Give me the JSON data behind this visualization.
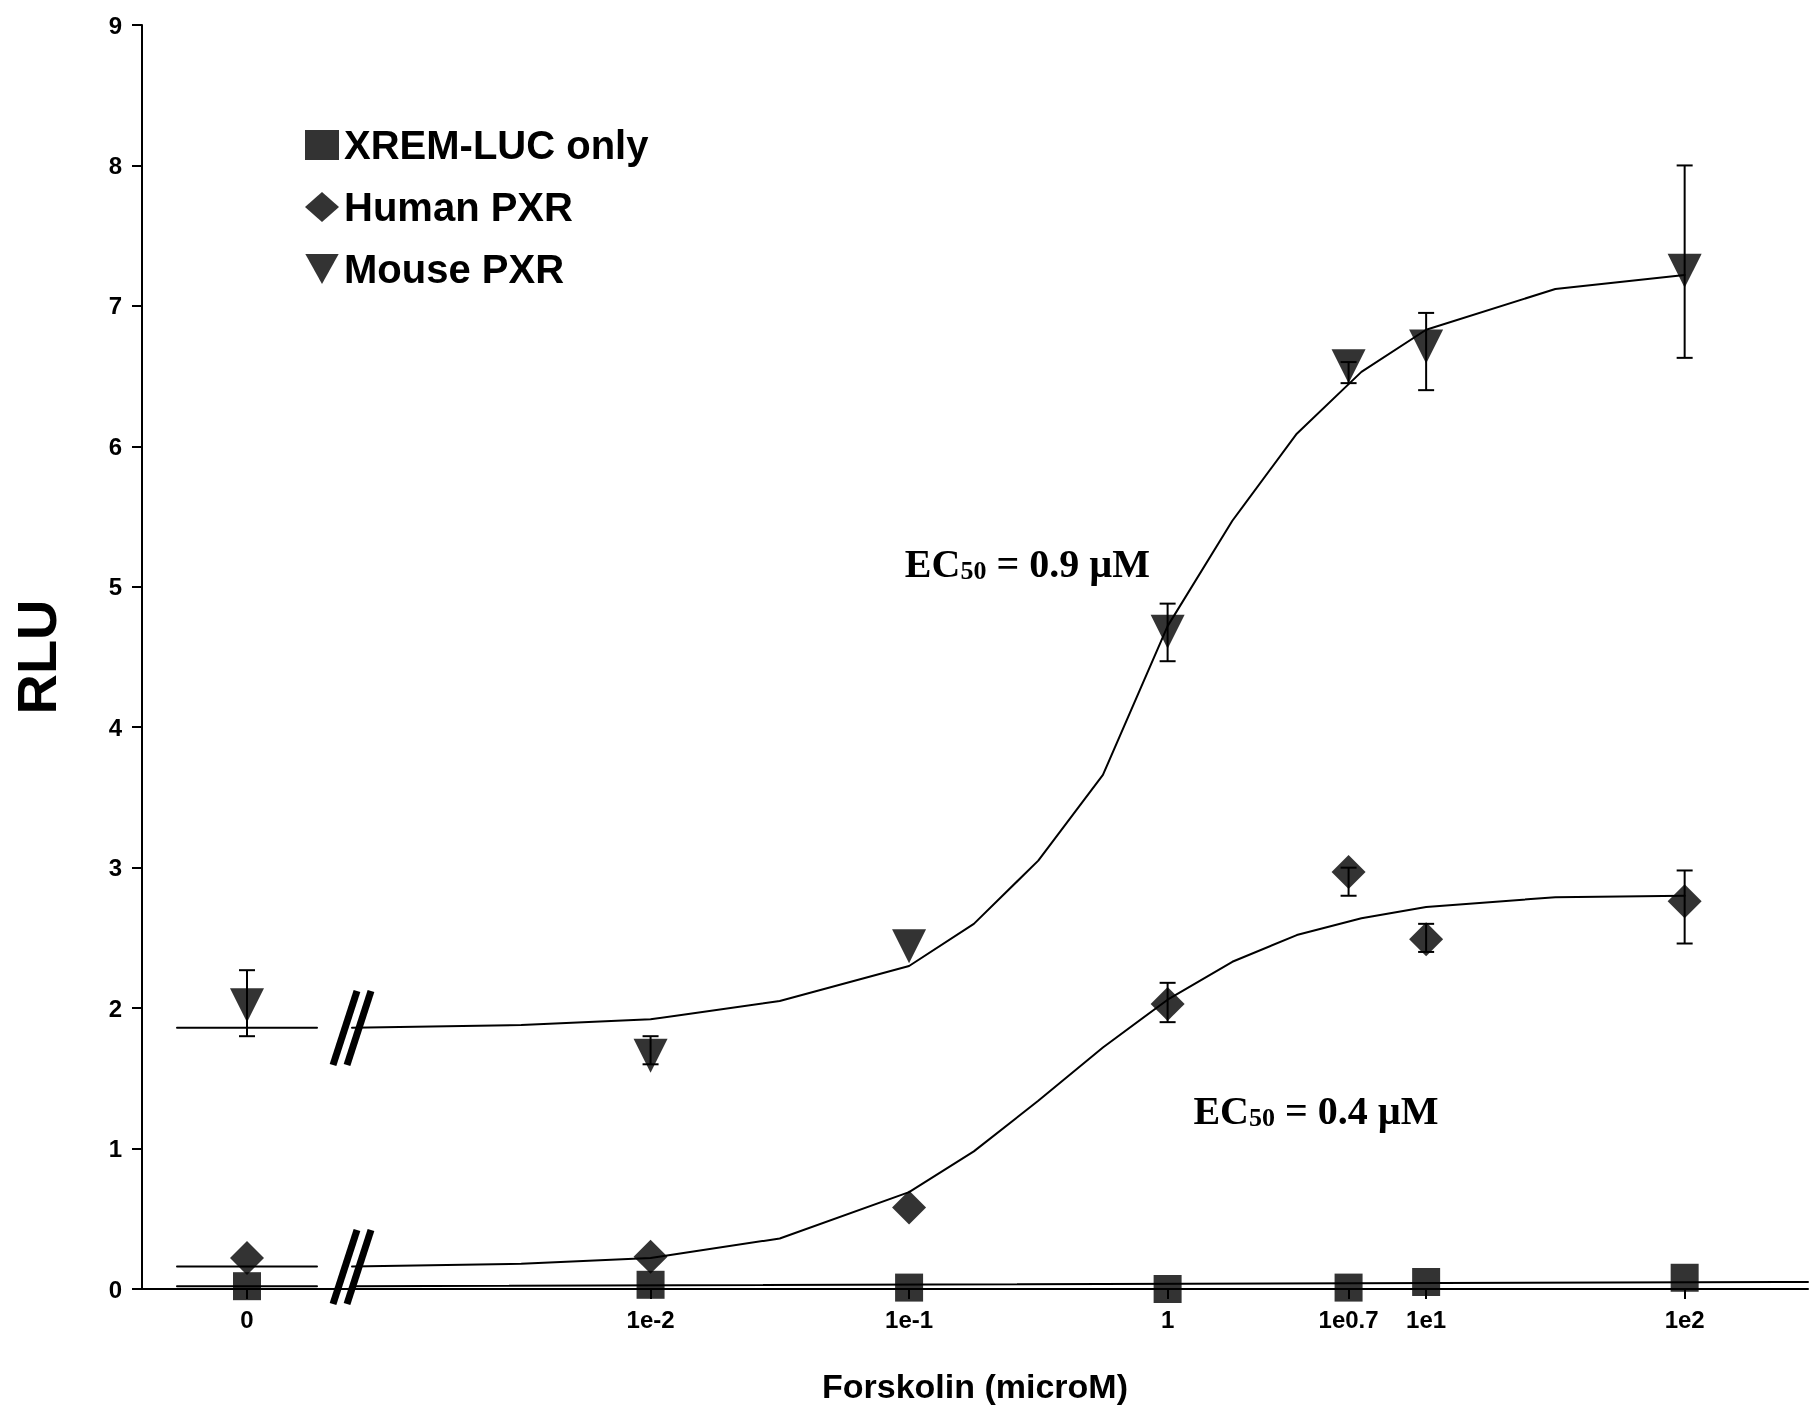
{
  "chart_data": [
    {
      "type": "scatter",
      "ylabel": "RLU",
      "categories": [
        null,
        "0",
        null
      ],
      "ylim": [
        0,
        9
      ],
      "yticks": [
        0,
        1,
        2,
        3,
        4,
        5,
        6,
        7,
        8,
        9
      ],
      "grid": false,
      "series": [
        {
          "color": "#000000",
          "marker": "square",
          "values": [
            null,
            0.02,
            null
          ]
        },
        {
          "color": "#000000",
          "marker": "diamond",
          "values": [
            null,
            0.22,
            null
          ]
        },
        {
          "color": "#000000",
          "marker": "triangle",
          "values": [
            null,
            2.02,
            null
          ],
          "errors": [
            null,
            [
              1.8,
              2.27
            ],
            null
          ]
        },
        {
          "type": "line",
          "color": "#000000",
          "marker": "none",
          "values": [
            0.02,
            0.02,
            0.02
          ]
        },
        {
          "type": "line",
          "color": "#000000",
          "marker": "none",
          "values": [
            0.16,
            0.16,
            0.16
          ]
        },
        {
          "type": "line",
          "color": "#000000",
          "marker": "none",
          "values": [
            1.86,
            1.86,
            1.86
          ]
        }
      ]
    },
    {
      "type": "scatter",
      "xlabel": "Forskolin (microM)",
      "log": "x",
      "xlim": [
        0.0007,
        300
      ],
      "ylim": [
        0,
        9
      ],
      "tick_labels": "x",
      "xticks": [
        {
          "value": 0.01,
          "label": "1e-2"
        },
        {
          "value": 0.1,
          "label": "1e-1"
        },
        1,
        {
          "value": 5.012,
          "label": "1e0.7"
        },
        {
          "value": 10,
          "label": "1e1"
        },
        {
          "value": 100,
          "label": "1e2"
        }
      ],
      "grid": false,
      "legend": "top left",
      "annotations": [
        "EC$_{50}$ = 0.9 µM",
        "EC$_{50}$ = 0.4 µM"
      ],
      "series": [
        {
          "name": "XREM-LUC only",
          "color": "#000000",
          "marker": "square",
          "x": [
            0.01,
            0.1,
            1,
            5.012,
            10,
            100
          ],
          "values": [
            0.03,
            0.01,
            0,
            0.01,
            0.05,
            0.08
          ]
        },
        {
          "name": "Human PXR",
          "color": "#000000",
          "marker": "diamond",
          "x": [
            0.01,
            0.1,
            1,
            5.012,
            10,
            100
          ],
          "values": [
            0.23,
            0.58,
            2.03,
            2.97,
            2.49,
            2.76
          ],
          "errors": [
            null,
            null,
            [
              1.9,
              2.18
            ],
            [
              2.8,
              3.0
            ],
            [
              2.4,
              2.6
            ],
            [
              2.46,
              2.98
            ]
          ]
        },
        {
          "name": "Mouse PXR",
          "color": "#000000",
          "marker": "triangle",
          "x": [
            0.01,
            0.1,
            1,
            5.012,
            10,
            100
          ],
          "values": [
            1.66,
            2.44,
            4.68,
            6.57,
            6.71,
            7.25
          ],
          "errors": [
            [
              1.6,
              1.8
            ],
            null,
            [
              4.47,
              4.88
            ],
            [
              6.45,
              6.6
            ],
            [
              6.4,
              6.95
            ],
            [
              6.63,
              8.0
            ]
          ]
        },
        {
          "type": "line",
          "color": "#000000",
          "marker": "none",
          "x": [
            0.0007,
            300
          ],
          "values": [
            0.02,
            0.05
          ]
        },
        {
          "type": "line",
          "color": "#000000",
          "marker": "none",
          "x": [
            0.0007,
            0.00316,
            0.01,
            0.0316,
            0.1,
            0.178,
            0.316,
            0.562,
            1,
            1.78,
            3.16,
            5.62,
            10,
            31.6,
            100
          ],
          "values": [
            0.16,
            0.18,
            0.22,
            0.36,
            0.69,
            0.98,
            1.34,
            1.72,
            2.06,
            2.33,
            2.52,
            2.64,
            2.72,
            2.79,
            2.8
          ]
        },
        {
          "type": "line",
          "color": "#000000",
          "marker": "none",
          "x": [
            0.0007,
            0.00316,
            0.01,
            0.0316,
            0.1,
            0.178,
            0.316,
            0.562,
            1,
            1.78,
            3.16,
            5.62,
            10,
            31.6,
            100
          ],
          "values": [
            1.86,
            1.88,
            1.92,
            2.05,
            2.3,
            2.6,
            3.05,
            3.66,
            4.72,
            5.47,
            6.09,
            6.53,
            6.83,
            7.12,
            7.22
          ]
        }
      ]
    }
  ]
}
